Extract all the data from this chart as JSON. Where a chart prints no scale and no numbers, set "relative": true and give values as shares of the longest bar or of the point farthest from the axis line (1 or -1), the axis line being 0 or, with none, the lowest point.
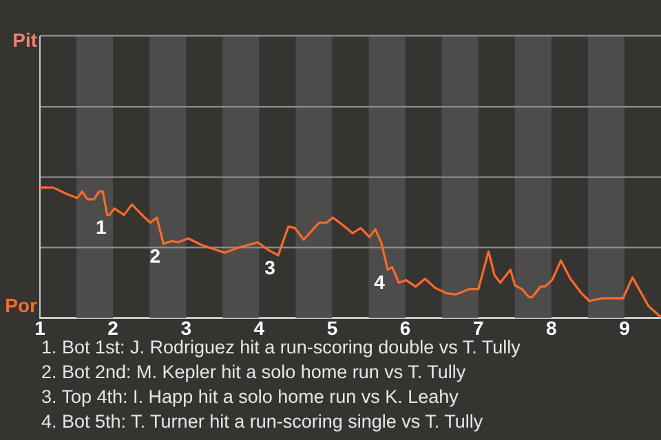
{
  "chart_data": {
    "type": "line",
    "relative": true,
    "x": [
      1.0,
      1.18,
      1.37,
      1.51,
      1.58,
      1.65,
      1.74,
      1.81,
      1.86,
      1.92,
      1.95,
      2.02,
      2.15,
      2.26,
      2.38,
      2.51,
      2.6,
      2.69,
      2.81,
      2.89,
      3.03,
      3.21,
      3.53,
      3.72,
      3.98,
      4.13,
      4.26,
      4.4,
      4.49,
      4.61,
      4.82,
      4.92,
      5.01,
      5.15,
      5.28,
      5.39,
      5.51,
      5.59,
      5.67,
      5.76,
      5.82,
      5.91,
      6.01,
      6.14,
      6.27,
      6.41,
      6.56,
      6.69,
      6.87,
      7.0,
      7.14,
      7.22,
      7.3,
      7.44,
      7.5,
      7.6,
      7.69,
      7.74,
      7.85,
      7.91,
      8.01,
      8.13,
      8.26,
      8.41,
      8.52,
      8.69,
      8.98,
      9.11,
      9.33,
      9.49
    ],
    "series": [
      {
        "color": "#ff6a2a",
        "values": [
          1,
          1,
          0.95,
          0.92,
          0.97,
          0.91,
          0.91,
          0.97,
          0.97,
          0.79,
          0.79,
          0.84,
          0.79,
          0.87,
          0.8,
          0.73,
          0.77,
          0.57,
          0.59,
          0.58,
          0.61,
          0.56,
          0.5,
          0.54,
          0.58,
          0.52,
          0.48,
          0.7,
          0.69,
          0.6,
          0.73,
          0.73,
          0.77,
          0.71,
          0.65,
          0.69,
          0.62,
          0.68,
          0.58,
          0.37,
          0.39,
          0.27,
          0.29,
          0.24,
          0.3,
          0.23,
          0.19,
          0.18,
          0.22,
          0.22,
          0.51,
          0.33,
          0.27,
          0.37,
          0.25,
          0.22,
          0.16,
          0.16,
          0.24,
          0.24,
          0.29,
          0.44,
          0.3,
          0.19,
          0.13,
          0.15,
          0.15,
          0.31,
          0.09,
          0.01
        ]
      }
    ],
    "xlim": [
      1,
      9.5
    ],
    "xticks": [
      1,
      2,
      3,
      4,
      5,
      6,
      7,
      8,
      9
    ],
    "ref_lines": [
      {
        "axis": "y",
        "value": 0.54,
        "color": "#8a8a8a"
      },
      {
        "axis": "y",
        "value": 1.08,
        "color": "#8a8a8a"
      },
      {
        "axis": "y",
        "value": 1.62,
        "color": "#8a8a8a"
      }
    ],
    "legend": false,
    "marker": "none",
    "line_style": "solid",
    "bands": [
      {
        "axis": "x",
        "from": 1.5,
        "to": 2,
        "color": "#4d4c4a"
      },
      {
        "axis": "x",
        "from": 2.5,
        "to": 3,
        "color": "#4d4c4a"
      },
      {
        "axis": "x",
        "from": 3.5,
        "to": 4,
        "color": "#4d4c4a"
      },
      {
        "axis": "x",
        "from": 4.5,
        "to": 5,
        "color": "#4d4c4a"
      },
      {
        "axis": "x",
        "from": 5.5,
        "to": 6,
        "color": "#4d4c4a"
      },
      {
        "axis": "x",
        "from": 6.5,
        "to": 7,
        "color": "#4d4c4a"
      },
      {
        "axis": "x",
        "from": 7.5,
        "to": 8,
        "color": "#4d4c4a"
      },
      {
        "axis": "x",
        "from": 8.5,
        "to": 9,
        "color": "#4d4c4a"
      }
    ],
    "annotations": [
      "Pit",
      "Por",
      {
        "text": "1",
        "x": 1.95,
        "y": 0.79
      },
      {
        "text": "2",
        "x": 2.69,
        "y": 0.57
      },
      {
        "text": "3",
        "x": 4.26,
        "y": 0.48
      },
      {
        "text": "4",
        "x": 5.76,
        "y": 0.37
      },
      "1. Bot 1st: J. Rodriguez hit a run-scoring double vs T. Tully",
      "2. Bot 2nd: M. Kepler hit a solo home run vs T. Tully",
      "3. Top 4th: I. Happ hit a solo home run vs K. Leahy",
      "4. Bot 5th: T. Turner hit a run-scoring single vs T. Tully"
    ]
  }
}
